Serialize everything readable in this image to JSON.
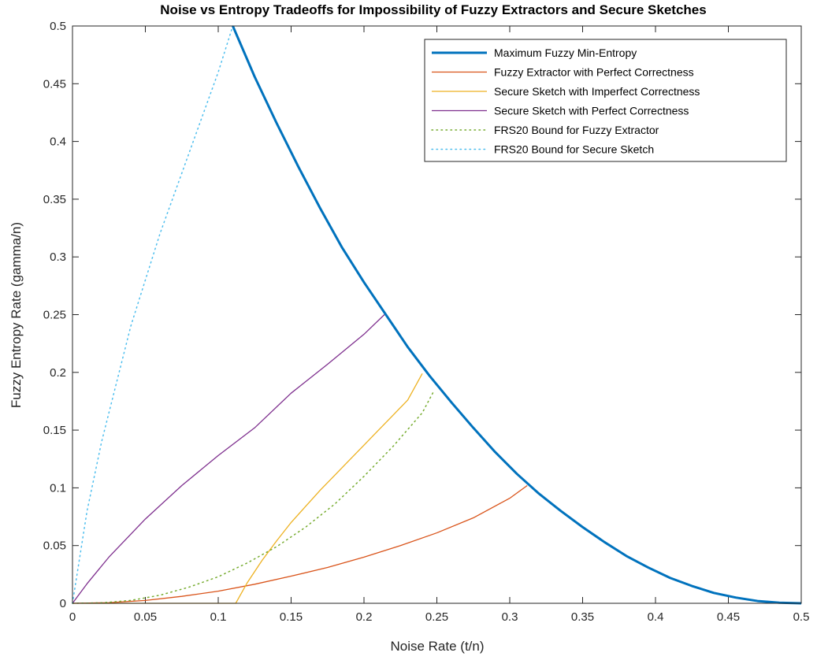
{
  "chart_data": {
    "type": "line",
    "title": "Noise vs Entropy Tradeoffs for Impossibility of Fuzzy Extractors and Secure Sketches",
    "xlabel": "Noise Rate (t/n)",
    "ylabel": "Fuzzy Entropy Rate (gamma/n)",
    "xlim": [
      0,
      0.5
    ],
    "ylim": [
      0,
      0.5
    ],
    "xticks": [
      "0",
      "0.05",
      "0.1",
      "0.15",
      "0.2",
      "0.25",
      "0.3",
      "0.35",
      "0.4",
      "0.45",
      "0.5"
    ],
    "yticks": [
      "0",
      "0.05",
      "0.1",
      "0.15",
      "0.2",
      "0.25",
      "0.3",
      "0.35",
      "0.4",
      "0.45",
      "0.5"
    ],
    "grid": false,
    "legend_position": "top-right",
    "series": [
      {
        "name": "Maximum Fuzzy Min-Entropy",
        "color": "#0072bd",
        "style": "solid-thick",
        "x": [
          0.11,
          0.125,
          0.14,
          0.155,
          0.17,
          0.185,
          0.2,
          0.215,
          0.23,
          0.245,
          0.26,
          0.275,
          0.29,
          0.305,
          0.32,
          0.335,
          0.35,
          0.365,
          0.38,
          0.395,
          0.41,
          0.425,
          0.44,
          0.455,
          0.47,
          0.485,
          0.5
        ],
        "y": [
          0.5,
          0.456,
          0.416,
          0.378,
          0.342,
          0.308,
          0.278,
          0.25,
          0.222,
          0.197,
          0.174,
          0.152,
          0.131,
          0.112,
          0.095,
          0.08,
          0.066,
          0.053,
          0.041,
          0.031,
          0.022,
          0.015,
          0.009,
          0.005,
          0.002,
          0.0005,
          0
        ]
      },
      {
        "name": "Fuzzy Extractor with Perfect Correctness",
        "color": "#d95319",
        "style": "solid",
        "x": [
          0,
          0.025,
          0.05,
          0.075,
          0.1,
          0.125,
          0.15,
          0.175,
          0.2,
          0.225,
          0.25,
          0.275,
          0.3,
          0.312
        ],
        "y": [
          0,
          0.0005,
          0.0025,
          0.006,
          0.0105,
          0.0165,
          0.0235,
          0.031,
          0.04,
          0.05,
          0.061,
          0.074,
          0.091,
          0.102
        ]
      },
      {
        "name": "Secure Sketch with Imperfect Correctness",
        "color": "#edb120",
        "style": "solid",
        "x": [
          0,
          0.112,
          0.12,
          0.13,
          0.14,
          0.15,
          0.16,
          0.17,
          0.18,
          0.19,
          0.2,
          0.21,
          0.22,
          0.23,
          0.24
        ],
        "y": [
          0,
          0,
          0.018,
          0.037,
          0.054,
          0.07,
          0.084,
          0.098,
          0.111,
          0.124,
          0.137,
          0.15,
          0.163,
          0.176,
          0.199
        ]
      },
      {
        "name": "Secure Sketch with Perfect Correctness",
        "color": "#7e2f8e",
        "style": "solid",
        "x": [
          0,
          0.01,
          0.025,
          0.05,
          0.075,
          0.1,
          0.125,
          0.15,
          0.175,
          0.2,
          0.214
        ],
        "y": [
          0,
          0.017,
          0.04,
          0.073,
          0.102,
          0.128,
          0.152,
          0.182,
          0.207,
          0.233,
          0.25
        ]
      },
      {
        "name": "FRS20 Bound for Fuzzy Extractor",
        "color": "#77ac30",
        "style": "dotted",
        "x": [
          0,
          0.02,
          0.04,
          0.06,
          0.08,
          0.1,
          0.12,
          0.14,
          0.16,
          0.18,
          0.2,
          0.22,
          0.24,
          0.248
        ],
        "y": [
          0,
          0.0004,
          0.0025,
          0.007,
          0.014,
          0.023,
          0.035,
          0.049,
          0.066,
          0.086,
          0.11,
          0.136,
          0.165,
          0.184
        ]
      },
      {
        "name": "FRS20 Bound for Secure Sketch",
        "color": "#4dbeee",
        "style": "dotted",
        "x": [
          0,
          0.01,
          0.02,
          0.04,
          0.06,
          0.08,
          0.1,
          0.11
        ],
        "y": [
          0,
          0.08,
          0.14,
          0.24,
          0.32,
          0.39,
          0.46,
          0.5
        ]
      }
    ]
  }
}
